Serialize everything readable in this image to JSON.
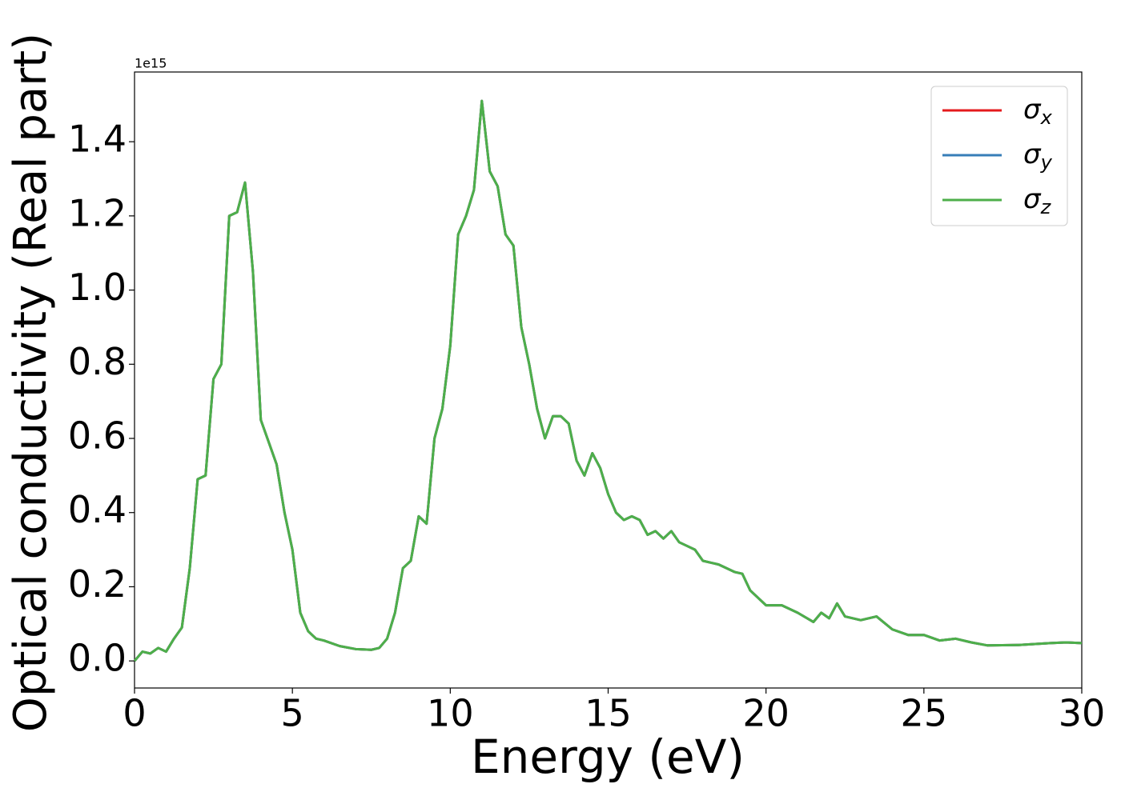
{
  "chart_data": {
    "type": "line",
    "xlabel": "Energy (eV)",
    "ylabel": "Optical conductivity (Real part)",
    "offset_text": "1e15",
    "x": [
      0,
      0.25,
      0.5,
      0.75,
      1,
      1.25,
      1.5,
      1.75,
      2,
      2.25,
      2.5,
      2.75,
      3,
      3.25,
      3.5,
      3.75,
      4,
      4.25,
      4.5,
      4.75,
      5,
      5.25,
      5.5,
      5.75,
      6,
      6.5,
      7,
      7.5,
      7.75,
      8,
      8.25,
      8.5,
      8.75,
      9,
      9.25,
      9.5,
      9.75,
      10,
      10.25,
      10.5,
      10.75,
      11,
      11.25,
      11.5,
      11.75,
      12,
      12.25,
      12.5,
      12.75,
      13,
      13.25,
      13.5,
      13.75,
      14,
      14.25,
      14.5,
      14.75,
      15,
      15.25,
      15.5,
      15.75,
      16,
      16.25,
      16.5,
      16.75,
      17,
      17.25,
      17.5,
      17.75,
      18,
      18.5,
      18.75,
      19,
      19.25,
      19.5,
      20,
      20.5,
      21,
      21.5,
      21.75,
      22,
      22.25,
      22.5,
      23,
      23.5,
      24,
      24.5,
      25,
      25.5,
      26,
      26.5,
      27,
      28,
      29,
      29.5,
      30
    ],
    "series": [
      {
        "name": "σx",
        "color": "#e41a1c",
        "values": [
          0,
          0.025,
          0.02,
          0.035,
          0.025,
          0.06,
          0.09,
          0.25,
          0.49,
          0.5,
          0.76,
          0.8,
          1.2,
          1.21,
          1.29,
          1.05,
          0.65,
          0.59,
          0.53,
          0.4,
          0.3,
          0.13,
          0.08,
          0.06,
          0.055,
          0.04,
          0.032,
          0.03,
          0.035,
          0.06,
          0.13,
          0.25,
          0.27,
          0.39,
          0.37,
          0.6,
          0.68,
          0.85,
          1.15,
          1.2,
          1.27,
          1.51,
          1.32,
          1.28,
          1.15,
          1.12,
          0.9,
          0.8,
          0.68,
          0.6,
          0.66,
          0.66,
          0.64,
          0.54,
          0.5,
          0.56,
          0.52,
          0.45,
          0.4,
          0.38,
          0.39,
          0.38,
          0.34,
          0.35,
          0.33,
          0.35,
          0.32,
          0.31,
          0.3,
          0.27,
          0.26,
          0.25,
          0.24,
          0.235,
          0.19,
          0.15,
          0.15,
          0.13,
          0.105,
          0.13,
          0.115,
          0.155,
          0.12,
          0.11,
          0.12,
          0.085,
          0.07,
          0.07,
          0.055,
          0.06,
          0.05,
          0.042,
          0.043,
          0.048,
          0.05,
          0.048
        ]
      },
      {
        "name": "σy",
        "color": "#377eb8",
        "values": [
          0,
          0.025,
          0.02,
          0.035,
          0.025,
          0.06,
          0.09,
          0.25,
          0.49,
          0.5,
          0.76,
          0.8,
          1.2,
          1.21,
          1.29,
          1.05,
          0.65,
          0.59,
          0.53,
          0.4,
          0.3,
          0.13,
          0.08,
          0.06,
          0.055,
          0.04,
          0.032,
          0.03,
          0.035,
          0.06,
          0.13,
          0.25,
          0.27,
          0.39,
          0.37,
          0.6,
          0.68,
          0.85,
          1.15,
          1.2,
          1.27,
          1.51,
          1.32,
          1.28,
          1.15,
          1.12,
          0.9,
          0.8,
          0.68,
          0.6,
          0.66,
          0.66,
          0.64,
          0.54,
          0.5,
          0.56,
          0.52,
          0.45,
          0.4,
          0.38,
          0.39,
          0.38,
          0.34,
          0.35,
          0.33,
          0.35,
          0.32,
          0.31,
          0.3,
          0.27,
          0.26,
          0.25,
          0.24,
          0.235,
          0.19,
          0.15,
          0.15,
          0.13,
          0.105,
          0.13,
          0.115,
          0.155,
          0.12,
          0.11,
          0.12,
          0.085,
          0.07,
          0.07,
          0.055,
          0.06,
          0.05,
          0.042,
          0.043,
          0.048,
          0.05,
          0.048
        ]
      },
      {
        "name": "σz",
        "color": "#4daf4a",
        "values": [
          0,
          0.025,
          0.02,
          0.035,
          0.025,
          0.06,
          0.09,
          0.25,
          0.49,
          0.5,
          0.76,
          0.8,
          1.2,
          1.21,
          1.29,
          1.05,
          0.65,
          0.59,
          0.53,
          0.4,
          0.3,
          0.13,
          0.08,
          0.06,
          0.055,
          0.04,
          0.032,
          0.03,
          0.035,
          0.06,
          0.13,
          0.25,
          0.27,
          0.39,
          0.37,
          0.6,
          0.68,
          0.85,
          1.15,
          1.2,
          1.27,
          1.51,
          1.32,
          1.28,
          1.15,
          1.12,
          0.9,
          0.8,
          0.68,
          0.6,
          0.66,
          0.66,
          0.64,
          0.54,
          0.5,
          0.56,
          0.52,
          0.45,
          0.4,
          0.38,
          0.39,
          0.38,
          0.34,
          0.35,
          0.33,
          0.35,
          0.32,
          0.31,
          0.3,
          0.27,
          0.26,
          0.25,
          0.24,
          0.235,
          0.19,
          0.15,
          0.15,
          0.13,
          0.105,
          0.13,
          0.115,
          0.155,
          0.12,
          0.11,
          0.12,
          0.085,
          0.07,
          0.07,
          0.055,
          0.06,
          0.05,
          0.042,
          0.043,
          0.048,
          0.05,
          0.048
        ]
      }
    ],
    "xlim": [
      0,
      30
    ],
    "xticks": [
      0,
      5,
      10,
      15,
      20,
      25,
      30
    ],
    "ylim": [
      -0.073,
      1.588
    ],
    "yticks": [
      {
        "value": 0,
        "label": "0.0"
      },
      0.2,
      0.4,
      0.6,
      0.8,
      {
        "value": 1,
        "label": "1.0"
      },
      1.2,
      1.4
    ],
    "grid": false,
    "legend": "upper right"
  }
}
